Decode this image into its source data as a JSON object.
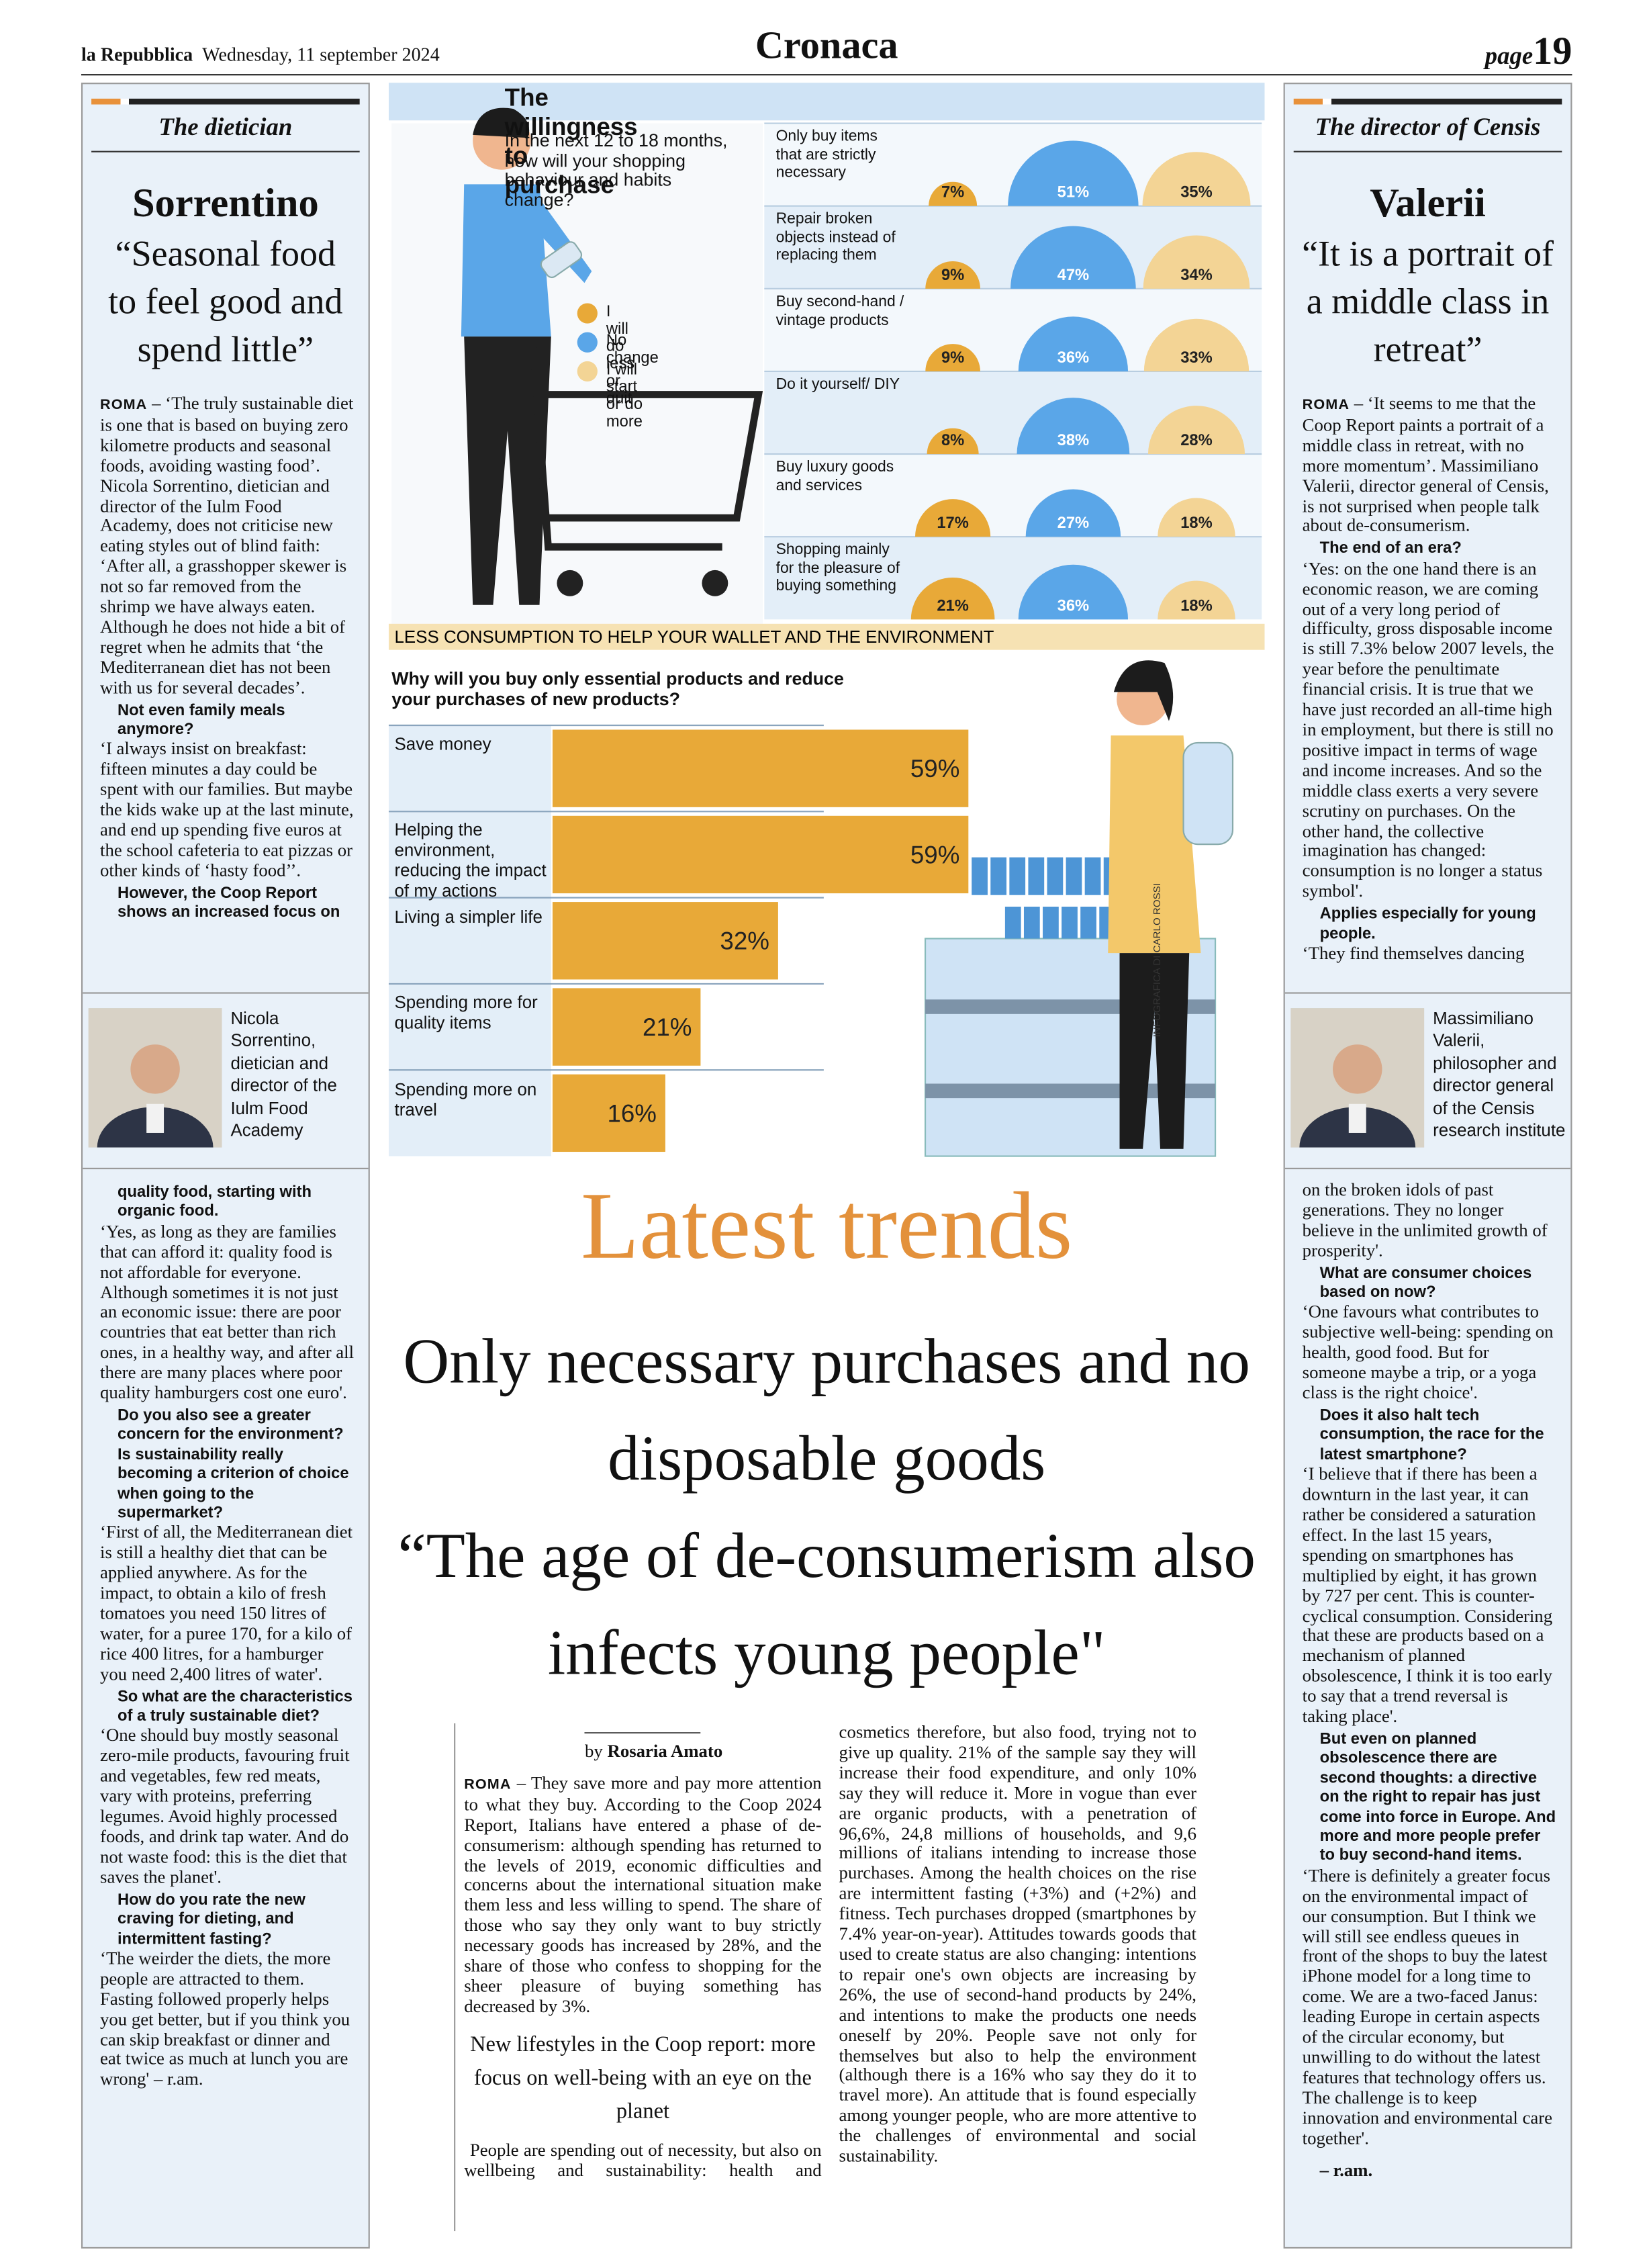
{
  "header": {
    "masthead": "la Repubblica",
    "date": "Wednesday, 11 september 2024",
    "section": "Cronaca",
    "page_label": "page",
    "page_number": "19"
  },
  "left": {
    "label": "The dietician",
    "name": "Sorrentino",
    "quote": "“Seasonal food to feel good and spend little”",
    "blocks": [
      {
        "dateline": "ROMA",
        "text": "– ‘The truly sustainable diet is one that is based on buying zero kilometre products and seasonal foods, avoiding wasting food’. Nicola Sorrentino, dietician and director of the Iulm Food Academy, does not criticise new eating styles out of blind faith: ‘After all, a grasshopper skewer is not so far removed from the shrimp we have always eaten. Although he does not hide a bit of regret when he admits that ‘the Mediterranean diet has not been with us for several decades’."
      },
      {
        "question": "Not even family meals anymore?"
      },
      {
        "text": "‘I always insist on breakfast: fifteen minutes a day could be spent with our families. But maybe the kids wake up at the last minute, and end up spending five euros at the school cafeteria to eat pizzas or other kinds of ‘hasty food’’."
      },
      {
        "question": "However, the Coop Report shows an increased focus on"
      }
    ],
    "photo_caption": "Nicola Sorrentino, dietician and director of the Iulm Food Academy",
    "blocks_continued": [
      {
        "question": "quality food, starting with organic food."
      },
      {
        "text": "‘Yes, as long as they are families that can afford it: quality food is not affordable for everyone. Although sometimes it is not just an economic issue: there are poor countries that eat better than rich ones, in a healthy way, and after all there are many places where poor quality hamburgers cost one euro'."
      },
      {
        "question": "Do you also see a greater concern for the environment? Is sustainability really becoming a criterion of choice when going to the supermarket?"
      },
      {
        "text": "‘First of all, the Mediterranean diet is still a healthy diet that can be applied anywhere. As for the impact, to obtain a kilo of fresh tomatoes you need 150 litres of water, for a puree 170, for a kilo of rice 400 litres, for a hamburger you need 2,400 litres of water'."
      },
      {
        "question": "So what are the characteristics of a truly sustainable diet?"
      },
      {
        "text": "‘One should buy mostly seasonal zero-mile products, favouring fruit and vegetables, few red meats, vary with proteins, preferring legumes. Avoid highly processed foods, and drink tap water. And do not waste food: this is the diet that saves the planet'."
      },
      {
        "question": "How do you rate the new craving for dieting, and intermittent fasting?"
      },
      {
        "text": "‘The weirder the diets, the more people are attracted to them. Fasting followed properly helps you get better, but if you think you can skip breakfast or dinner and eat twice as much at lunch you are wrong' – r.am."
      }
    ]
  },
  "right": {
    "label": "The director of Censis",
    "name": "Valerii",
    "quote": "“It is a portrait of a middle class in retreat”",
    "blocks": [
      {
        "dateline": "ROMA",
        "text": "– ‘It seems to me that the Coop Report paints a portrait of a middle class in retreat, with no more momentum’. Massimiliano Valerii, director general of Censis, is not surprised when people talk about de-consumerism."
      },
      {
        "question": "The end of an era?"
      },
      {
        "text": "‘Yes: on the one hand there is an economic reason, we are coming out of a very long period of difficulty, gross disposable income is still 7.3% below 2007 levels, the year before the penultimate financial crisis. It is true that we have just recorded an all-time high in employment, but there is still no positive impact in terms of wage and income increases. And so the middle class exerts a very severe scrutiny on purchases. On the other hand, the collective imagination has changed: consumption is no longer a status symbol'."
      },
      {
        "question": "Applies especially for young people."
      },
      {
        "text": "‘They find themselves dancing"
      }
    ],
    "photo_caption": "Massimiliano Valerii, philosopher and director general of the Censis research institute",
    "blocks_continued": [
      {
        "text": "on the broken idols of past generations. They no longer believe in the unlimited growth of prosperity'."
      },
      {
        "question": "What are consumer choices based on now?"
      },
      {
        "text": "‘One favours what contributes to subjective well-being: spending on health, good food. But for someone maybe a trip, or a yoga class is the right choice'."
      },
      {
        "question": "Does it also halt tech consumption, the race for the latest smartphone?"
      },
      {
        "text": "‘I believe that if there has been a downturn in the last year, it can rather be considered a saturation effect. In the last 15 years, spending on smartphones has multiplied by eight, it has grown by 727 per cent. This is counter-cyclical consumption. Considering that these are products based on a mechanism of planned obsolescence, I think it is too early to say that a trend reversal is taking place'."
      },
      {
        "question": "But even on planned obsolescence there are second thoughts: a directive on the right to repair has just come into force in Europe. And more and more people prefer to buy second-hand items."
      },
      {
        "text": "‘There is definitely a greater focus on the environmental impact of our consumption. But I think we will still see endless queues in front of the shops to buy the latest iPhone model for a long time to come. We are a two-faced Janus: leading Europe in certain aspects of the circular economy, but unwilling to do without the latest features that technology offers us. The challenge is to keep innovation and environmental care together'."
      }
    ],
    "signature": "– r.am."
  },
  "infographic": {
    "footer": "LESS CONSUMPTION TO HELP YOUR WALLET AND THE ENVIRONMENT",
    "credit": "INFOGRAFICA DI CARLO ROSSI"
  },
  "chart_data": [
    {
      "type": "semicircle",
      "title": "The willingness to purchase",
      "subtitle": "In the next 12 to 18 months, how will your shopping behaviour and habits change?",
      "categories": [
        "Only buy items that are strictly necessary",
        "Repair broken objects instead of replacing them",
        "Buy second-hand / vintage products",
        "Do it yourself/ DIY",
        "Buy luxury goods and services",
        "Shopping mainly for the pleasure of buying something"
      ],
      "series": [
        {
          "name": "I will do less or quit",
          "color": "#e8a938",
          "values": [
            7,
            9,
            9,
            8,
            17,
            21
          ],
          "value_labels": [
            "7%",
            "9%",
            "9%",
            "8%",
            "17%",
            "21%"
          ]
        },
        {
          "name": "No change",
          "color": "#5aa6e8",
          "values": [
            51,
            47,
            36,
            38,
            27,
            36
          ],
          "value_labels": [
            "51%",
            "47%",
            "36%",
            "38%",
            "27%",
            "36%"
          ]
        },
        {
          "name": "I will start or do more",
          "color": "#f3d495",
          "values": [
            35,
            34,
            33,
            28,
            18,
            18
          ],
          "value_labels": [
            "35%",
            "34%",
            "33%",
            "28%",
            "18%",
            "18%"
          ]
        }
      ]
    },
    {
      "type": "bar",
      "orientation": "horizontal",
      "title": "Why will you buy only essential products and reduce your purchases of new products?",
      "categories": [
        "Save money",
        "Helping the environment, reducing the impact of my actions",
        "Living a simpler life",
        "Spending more for quality items",
        "Spending more on travel"
      ],
      "values": [
        59,
        59,
        32,
        21,
        16
      ],
      "value_labels": [
        "59%",
        "59%",
        "32%",
        "21%",
        "16%"
      ],
      "color": "#e8a938"
    }
  ],
  "main": {
    "kicker": "Latest trends",
    "headline": [
      "Only necessary purchases and no disposable goods",
      "“The age of de-consumerism also infects young people\""
    ],
    "byline_prefix": "by",
    "byline_name": "Rosaria Amato",
    "paragraphs": [
      {
        "dateline": "ROMA",
        "text": "– They save more and pay more attention to what they buy. According to the Coop 2024 Report, Italians have entered a phase of de-consumerism: although spending has returned to the levels of 2019, economic difficulties and concerns about the international situation make them less and less willing to spend. The share of those who say they only want to buy strictly necessary goods has increased by 28%, and the share of those who confess to shopping for the sheer pleasure of buying something has decreased by 3%."
      },
      {
        "text": "People are spending out of necessity, but also on wellbeing and sustainability: health and cosmetics therefore, but also food, trying not to give up quality. 21% of the sample say they will increase their food expenditure, and only 10% say they will reduce it. More in vogue than ever are organic products, with a penetration of 96,6%, 24,8 millions of households, and 9,6 millions of italians intending to increase those purchases. Among the health choices on the rise are intermittent fasting (+3%) and (+2%) and fitness. Tech purchases dropped (smartphones by 7.4% year-on-year). Attitudes towards goods that used to create status are also changing: intentions to repair one's own objects are increasing by 26%, the use of second-hand products by 24%, and intentions to make the products one needs oneself by 20%. People save not only for themselves but also to help the environment (although there is a 16% who say they do it to travel more). An attitude that is found especially among younger people, who are more attentive to the challenges of environmental and social sustainability."
      }
    ],
    "pull_quote": "New lifestyles in the Coop report: more focus on well-being with an eye on the planet"
  }
}
